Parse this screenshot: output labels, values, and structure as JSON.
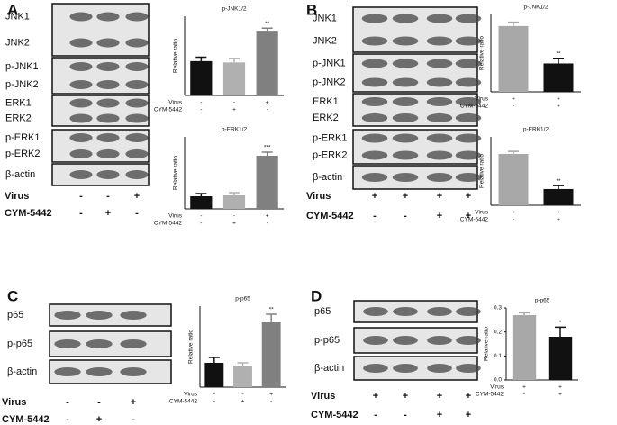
{
  "blots": [
    {
      "label": "A",
      "groups": [
        [
          "JNK1",
          "JNK2"
        ],
        [
          "p-JNK1",
          "p-JNK2"
        ],
        [
          "ERK1",
          "ERK2"
        ],
        [
          "p-ERK1",
          "p-ERK2"
        ],
        [
          "β-actin"
        ]
      ],
      "conditions": [
        {
          "name": "Virus",
          "signs": [
            "-",
            "-",
            "+"
          ]
        },
        {
          "name": "CYM-5442",
          "signs": [
            "-",
            "+",
            "-"
          ]
        }
      ]
    },
    {
      "label": "B",
      "groups": [
        [
          "JNK1",
          "JNK2"
        ],
        [
          "p-JNK1",
          "p-JNK2"
        ],
        [
          "ERK1",
          "ERK2"
        ],
        [
          "p-ERK1",
          "p-ERK2"
        ],
        [
          "β-actin"
        ]
      ],
      "conditions": [
        {
          "name": "Virus",
          "signs": [
            "+",
            "+",
            "+",
            "+"
          ]
        },
        {
          "name": "CYM-5442",
          "signs": [
            "-",
            "-",
            "+",
            "+"
          ]
        }
      ]
    },
    {
      "label": "C",
      "groups": [
        [
          "p65"
        ],
        [
          "p-p65"
        ],
        [
          "β-actin"
        ]
      ],
      "conditions": [
        {
          "name": "Virus",
          "signs": [
            "-",
            "-",
            "+"
          ]
        },
        {
          "name": "CYM-5442",
          "signs": [
            "-",
            "+",
            "-"
          ]
        }
      ]
    },
    {
      "label": "D",
      "groups": [
        [
          "p65"
        ],
        [
          "p-p65"
        ],
        [
          "β-actin"
        ]
      ],
      "conditions": [
        {
          "name": "Virus",
          "signs": [
            "+",
            "+",
            "+",
            "+"
          ]
        },
        {
          "name": "CYM-5442",
          "signs": [
            "-",
            "-",
            "+",
            "+"
          ]
        }
      ]
    }
  ],
  "chart_data": [
    {
      "type": "bar",
      "title": "p-JNK1/2",
      "ylabel": "Relative ratio",
      "values": [
        0.26,
        0.25,
        0.49
      ],
      "errors": [
        0.03,
        0.03,
        0.02
      ],
      "colors": [
        "#111111",
        "#b0b0b0",
        "#808080"
      ],
      "significance": [
        null,
        null,
        "**"
      ],
      "ylim": [
        0,
        0.6
      ],
      "conditions": [
        {
          "name": "Virus",
          "signs": [
            "-",
            "-",
            "+"
          ]
        },
        {
          "name": "CYM-5442",
          "signs": [
            "-",
            "+",
            "-"
          ]
        }
      ]
    },
    {
      "type": "bar",
      "title": "p-ERK1/2",
      "ylabel": "Relative ratio",
      "values": [
        0.14,
        0.15,
        0.59
      ],
      "errors": [
        0.03,
        0.03,
        0.04
      ],
      "colors": [
        "#111111",
        "#b0b0b0",
        "#808080"
      ],
      "significance": [
        null,
        null,
        "***"
      ],
      "ylim": [
        0,
        0.8
      ],
      "conditions": [
        {
          "name": "Virus",
          "signs": [
            "-",
            "-",
            "+"
          ]
        },
        {
          "name": "CYM-5442",
          "signs": [
            "-",
            "+",
            "-"
          ]
        }
      ]
    },
    {
      "type": "bar",
      "title": "p-JNK1/2",
      "ylabel": "Relative ratio",
      "values": [
        0.51,
        0.22
      ],
      "errors": [
        0.03,
        0.04
      ],
      "colors": [
        "#a8a8a8",
        "#111111"
      ],
      "significance": [
        null,
        "**"
      ],
      "ylim": [
        0,
        0.6
      ],
      "conditions": [
        {
          "name": "Virus",
          "signs": [
            "+",
            "+"
          ]
        },
        {
          "name": "CYM-5442",
          "signs": [
            "-",
            "+"
          ]
        }
      ]
    },
    {
      "type": "bar",
      "title": "p-ERK1/2",
      "ylabel": "Relative ratio",
      "values": [
        0.6,
        0.19
      ],
      "errors": [
        0.03,
        0.04
      ],
      "colors": [
        "#a8a8a8",
        "#111111"
      ],
      "significance": [
        null,
        "**"
      ],
      "ylim": [
        0,
        0.8
      ],
      "conditions": [
        {
          "name": "Virus",
          "signs": [
            "+",
            "+"
          ]
        },
        {
          "name": "CYM-5442",
          "signs": [
            "-",
            "+"
          ]
        }
      ]
    },
    {
      "type": "bar",
      "title": "p-p65",
      "ylabel": "Relative ratio",
      "values": [
        0.09,
        0.08,
        0.24
      ],
      "errors": [
        0.02,
        0.01,
        0.03
      ],
      "colors": [
        "#111111",
        "#b0b0b0",
        "#808080"
      ],
      "significance": [
        null,
        null,
        "**"
      ],
      "ylim": [
        0,
        0.3
      ],
      "conditions": [
        {
          "name": "Virus",
          "signs": [
            "-",
            "-",
            "+"
          ]
        },
        {
          "name": "CYM-5442",
          "signs": [
            "-",
            "+",
            "-"
          ]
        }
      ]
    },
    {
      "type": "bar",
      "title": "p-p65",
      "ylabel": "Relative ratio",
      "values": [
        0.27,
        0.18
      ],
      "errors": [
        0.01,
        0.04
      ],
      "colors": [
        "#a8a8a8",
        "#111111"
      ],
      "significance": [
        null,
        "*"
      ],
      "ylim": [
        0,
        0.3
      ],
      "yticks": [
        {
          "value": 0,
          "label": "0.0"
        },
        0.1,
        0.2,
        0.3
      ],
      "conditions": [
        {
          "name": "Virus",
          "signs": [
            "+",
            "+"
          ]
        },
        {
          "name": "CYM-5442",
          "signs": [
            "-",
            "+"
          ]
        }
      ]
    }
  ]
}
